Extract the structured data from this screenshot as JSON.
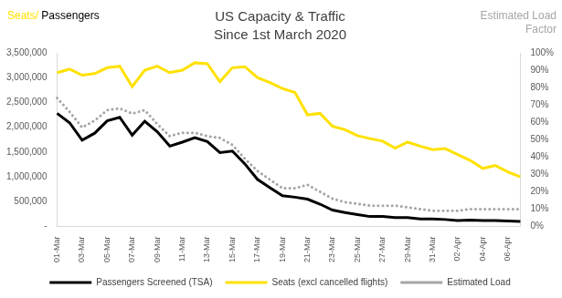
{
  "chart_data": {
    "type": "line",
    "title": "US Capacity & Traffic",
    "subtitle": "Since 1st March 2020",
    "y_label": "Seats/ Passengers",
    "y2_label": "Estimated Load Factor",
    "categories": [
      "01-Mar",
      null,
      "03-Mar",
      null,
      "05-Mar",
      null,
      "07-Mar",
      null,
      "09-Mar",
      null,
      "11-Mar",
      null,
      "13-Mar",
      null,
      "15-Mar",
      null,
      "17-Mar",
      null,
      "19-Mar",
      null,
      "21-Mar",
      null,
      "23-Mar",
      null,
      "25-Mar",
      null,
      "27-Mar",
      null,
      "29-Mar",
      null,
      "31-Mar",
      null,
      "02-Apr",
      null,
      "04-Apr",
      null,
      "06-Apr",
      null
    ],
    "series": [
      {
        "name": "Passengers Screened (TSA)",
        "color": "#000000",
        "line_style": "solid",
        "values": [
          2280000,
          2090000,
          1740000,
          1880000,
          2130000,
          2200000,
          1840000,
          2120000,
          1910000,
          1620000,
          1700000,
          1790000,
          1710000,
          1490000,
          1520000,
          1260000,
          950000,
          780000,
          620000,
          590000,
          550000,
          450000,
          330000,
          280000,
          240000,
          200000,
          200000,
          180000,
          180000,
          150000,
          150000,
          140000,
          120000,
          130000,
          120000,
          120000,
          110000,
          100000
        ]
      },
      {
        "name": "Seats (excl cancelled flights)",
        "color": "#ffe100",
        "line_style": "solid",
        "values": [
          3100000,
          3170000,
          3050000,
          3080000,
          3200000,
          3230000,
          2820000,
          3150000,
          3230000,
          3100000,
          3150000,
          3300000,
          3280000,
          2920000,
          3200000,
          3220000,
          3000000,
          2900000,
          2780000,
          2700000,
          2250000,
          2280000,
          2020000,
          1950000,
          1830000,
          1770000,
          1720000,
          1580000,
          1700000,
          1620000,
          1550000,
          1570000,
          1450000,
          1330000,
          1170000,
          1230000,
          1100000,
          1000000
        ]
      },
      {
        "name": "Estimated Load",
        "color": "#a6a6a6",
        "line_style": "dotted",
        "axis": "y2",
        "values": [
          74,
          66,
          57,
          61,
          67,
          68,
          65,
          67,
          59,
          52,
          54,
          54,
          52,
          51,
          47,
          39,
          32,
          27,
          22,
          22,
          24,
          20,
          16,
          14,
          13,
          12,
          12,
          12,
          11,
          10,
          9,
          9,
          9,
          10,
          10,
          10,
          10,
          10
        ]
      }
    ],
    "ylim": [
      0,
      3500000
    ],
    "yticks": [
      {
        "value": 0,
        "label": "-"
      },
      {
        "value": 500000,
        "label": "500,000"
      },
      {
        "value": 1000000,
        "label": "1,000,000"
      },
      {
        "value": 1500000,
        "label": "1,500,000"
      },
      {
        "value": 2000000,
        "label": "2,000,000"
      },
      {
        "value": 2500000,
        "label": "2,500,000"
      },
      {
        "value": 3000000,
        "label": "3,000,000"
      },
      {
        "value": 3500000,
        "label": "3,500,000"
      }
    ],
    "y2lim": [
      0,
      100
    ],
    "y2ticks": [
      {
        "value": 0,
        "label": "0%"
      },
      {
        "value": 10,
        "label": "10%"
      },
      {
        "value": 20,
        "label": "20%"
      },
      {
        "value": 30,
        "label": "30%"
      },
      {
        "value": 40,
        "label": "40%"
      },
      {
        "value": 50,
        "label": "50%"
      },
      {
        "value": 60,
        "label": "60%"
      },
      {
        "value": 70,
        "label": "70%"
      },
      {
        "value": 80,
        "label": "80%"
      },
      {
        "value": 90,
        "label": "90%"
      },
      {
        "value": 100,
        "label": "100%"
      }
    ],
    "grid": false,
    "legend": "bottom"
  }
}
